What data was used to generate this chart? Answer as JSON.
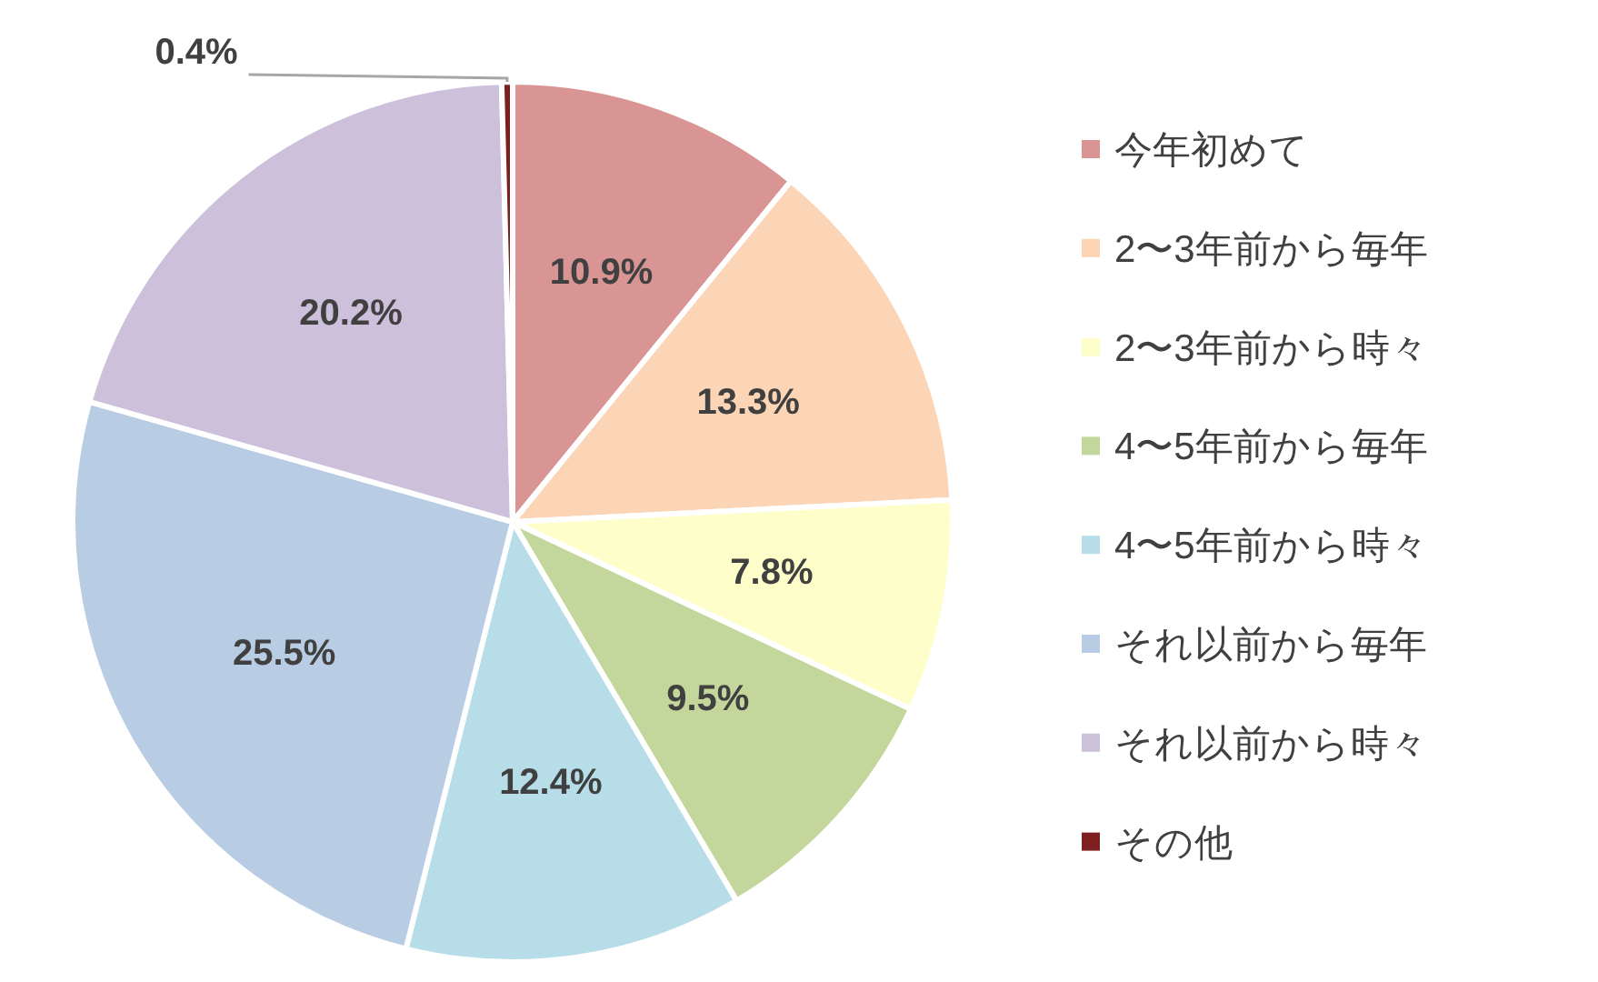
{
  "chart_data": {
    "type": "pie",
    "categories": [
      "今年初めて",
      "2〜3年前から毎年",
      "2〜3年前から時々",
      "4〜5年前から毎年",
      "4〜5年前から時々",
      "それ以前から毎年",
      "それ以前から時々",
      "その他"
    ],
    "values": [
      10.9,
      13.3,
      7.8,
      9.5,
      12.4,
      25.5,
      20.2,
      0.4
    ],
    "colors": [
      "#d99594",
      "#fbd5b5",
      "#fefecb",
      "#c3d69b",
      "#b7dee8",
      "#b8cce4",
      "#ccc0da",
      "#7f1f1f"
    ],
    "value_labels": [
      "10.9%",
      "13.3%",
      "7.8%",
      "9.5%",
      "12.4%",
      "25.5%",
      "20.2%",
      "0.4%"
    ],
    "legend": "right"
  }
}
